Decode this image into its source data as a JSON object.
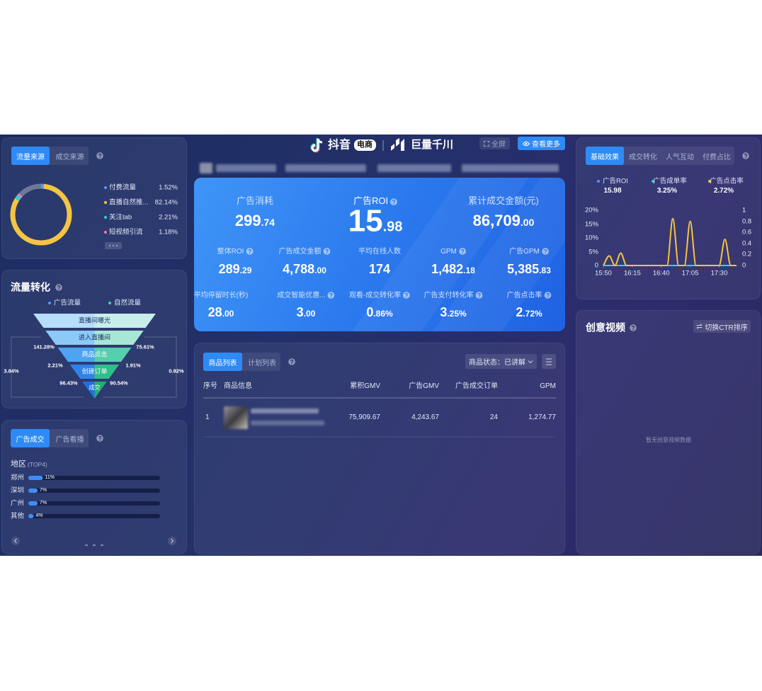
{
  "header": {
    "brand": "抖音",
    "brand_tag": "电商",
    "partner": "巨量千川",
    "fullscreen_button": "全屏",
    "more_button": "查看更多"
  },
  "traffic_source": {
    "tabs": [
      "流量来源",
      "成交来源"
    ],
    "items": [
      {
        "name": "付费流量",
        "color": "#4e9bff"
      },
      {
        "name": "直播自然推...",
        "color": "#f5c542"
      },
      {
        "name": "关注tab",
        "color": "#2fd1d9"
      },
      {
        "name": "短视频引流",
        "color": "#f07ab0"
      }
    ],
    "values": [
      1.52,
      82.14,
      2.21,
      1.18
    ],
    "value_labels": [
      "1.52%",
      "82.14%",
      "2.21%",
      "1.18%"
    ]
  },
  "conversion": {
    "title": "流量转化",
    "legend": [
      {
        "name": "广告流量",
        "color": "#4e9bff"
      },
      {
        "name": "自然流量",
        "color": "#3fd6a6"
      }
    ],
    "stages": [
      "直播间曝光",
      "进入直播间",
      "商品点击",
      "创建订单",
      "成交"
    ],
    "left_rates": [
      "141.28%",
      "2.21%",
      "96.43%"
    ],
    "right_rates": [
      "75.61%",
      "1.91%",
      "90.54%"
    ],
    "left_total": "3.84%",
    "right_total": "0.82%"
  },
  "region": {
    "tabs": [
      "广告成交",
      "广告看播"
    ],
    "title": "地区",
    "subtitle": "(TOP4)",
    "names": [
      "郑州",
      "深圳",
      "广州",
      "其他"
    ],
    "values": [
      11,
      7,
      7,
      4
    ],
    "value_labels": [
      "11%",
      "7%",
      "7%",
      "4%"
    ]
  },
  "kpi": {
    "main": [
      {
        "label": "广告消耗",
        "int": "299",
        "dec": ".74"
      },
      {
        "label": "广告ROI",
        "int": "15",
        "dec": ".98",
        "help": true
      },
      {
        "label": "累计成交金额(元)",
        "int": "86,709",
        "dec": ".00"
      }
    ],
    "grid": [
      [
        {
          "label": "整体ROI",
          "int": "289",
          "dec": ".29",
          "help": true
        },
        {
          "label": "广告成交金额",
          "int": "4,788",
          "dec": ".00",
          "help": true
        },
        {
          "label": "平均在线人数",
          "int": "174"
        },
        {
          "label": "GPM",
          "int": "1,482",
          "dec": ".18",
          "help": true
        },
        {
          "label": "广告GPM",
          "int": "5,385",
          "dec": ".83",
          "help": true
        }
      ],
      [
        {
          "label": "平均停留时长(秒)",
          "int": "28",
          "dec": ".00"
        },
        {
          "label": "成交智能优惠...",
          "int": "3",
          "dec": ".00",
          "help": true
        },
        {
          "label": "观看-成交转化率",
          "int": "0",
          "dec": ".86%",
          "help": true
        },
        {
          "label": "广告支付转化率",
          "int": "3",
          "dec": ".25%",
          "help": true
        },
        {
          "label": "广告点击率",
          "int": "2",
          "dec": ".72%",
          "help": true
        }
      ]
    ]
  },
  "products": {
    "tabs": [
      "商品列表",
      "计划列表"
    ],
    "filter": "商品状态：已讲解",
    "columns": [
      "序号",
      "商品信息",
      "累积GMV",
      "广告GMV",
      "广告成交订单",
      "GPM"
    ],
    "rows": [
      {
        "index": "1",
        "values": [
          "75,909.67",
          "4,243.67",
          "24",
          "1,274.77"
        ]
      }
    ]
  },
  "effect": {
    "tabs": [
      "基础效果",
      "成交转化",
      "人气互动",
      "付费占比"
    ],
    "legend": [
      {
        "name": "广告ROI",
        "value": "15.98",
        "color": "#4e9bff"
      },
      {
        "name": "广告成单率",
        "value": "3.25%",
        "color": "#2fd1d9"
      },
      {
        "name": "广告点击率",
        "value": "2.72%",
        "color": "#f5c542"
      }
    ],
    "chart": {
      "type": "line",
      "x": [
        950,
        955,
        960,
        965,
        970,
        975,
        980,
        985,
        990,
        995,
        1000,
        1005,
        1010,
        1015,
        1020,
        1025,
        1030,
        1035,
        1040,
        1045,
        1050,
        1055,
        1060,
        1065
      ],
      "xlim": [
        950,
        1065
      ],
      "xticks": [
        {
          "value": 950,
          "label": "15:50"
        },
        {
          "value": 975,
          "label": "16:15"
        },
        {
          "value": 1000,
          "label": "16:40"
        },
        {
          "value": 1025,
          "label": "17:05"
        },
        {
          "value": 1050,
          "label": "17:30"
        }
      ],
      "ylim": [
        0,
        20
      ],
      "yticks": [
        0,
        {
          "value": 5,
          "label": "5%"
        },
        {
          "value": 10,
          "label": "10%"
        },
        {
          "value": 15,
          "label": "15%"
        },
        {
          "value": 20,
          "label": "20%"
        }
      ],
      "y2lim": [
        0,
        1
      ],
      "y2ticks": [
        0,
        0.2,
        0.4,
        0.6,
        0.8,
        1
      ],
      "series": [
        {
          "color": "#2fd1d9",
          "values": [
            0,
            0,
            0,
            0,
            0,
            0,
            0,
            0,
            0,
            0,
            0,
            0,
            0,
            0,
            0,
            0,
            0,
            0,
            0,
            0,
            0,
            0,
            0,
            0
          ]
        },
        {
          "color": "#f5c542",
          "values": [
            0,
            3.5,
            0,
            4.5,
            0,
            0,
            0,
            0,
            0,
            0,
            0,
            0,
            17,
            0,
            0,
            16,
            0,
            0,
            0,
            0,
            0,
            9.5,
            0,
            0
          ]
        }
      ]
    }
  },
  "creative": {
    "title": "创意视频",
    "sort_button": "切换CTR排序",
    "empty": "暂无创意视频数据"
  }
}
